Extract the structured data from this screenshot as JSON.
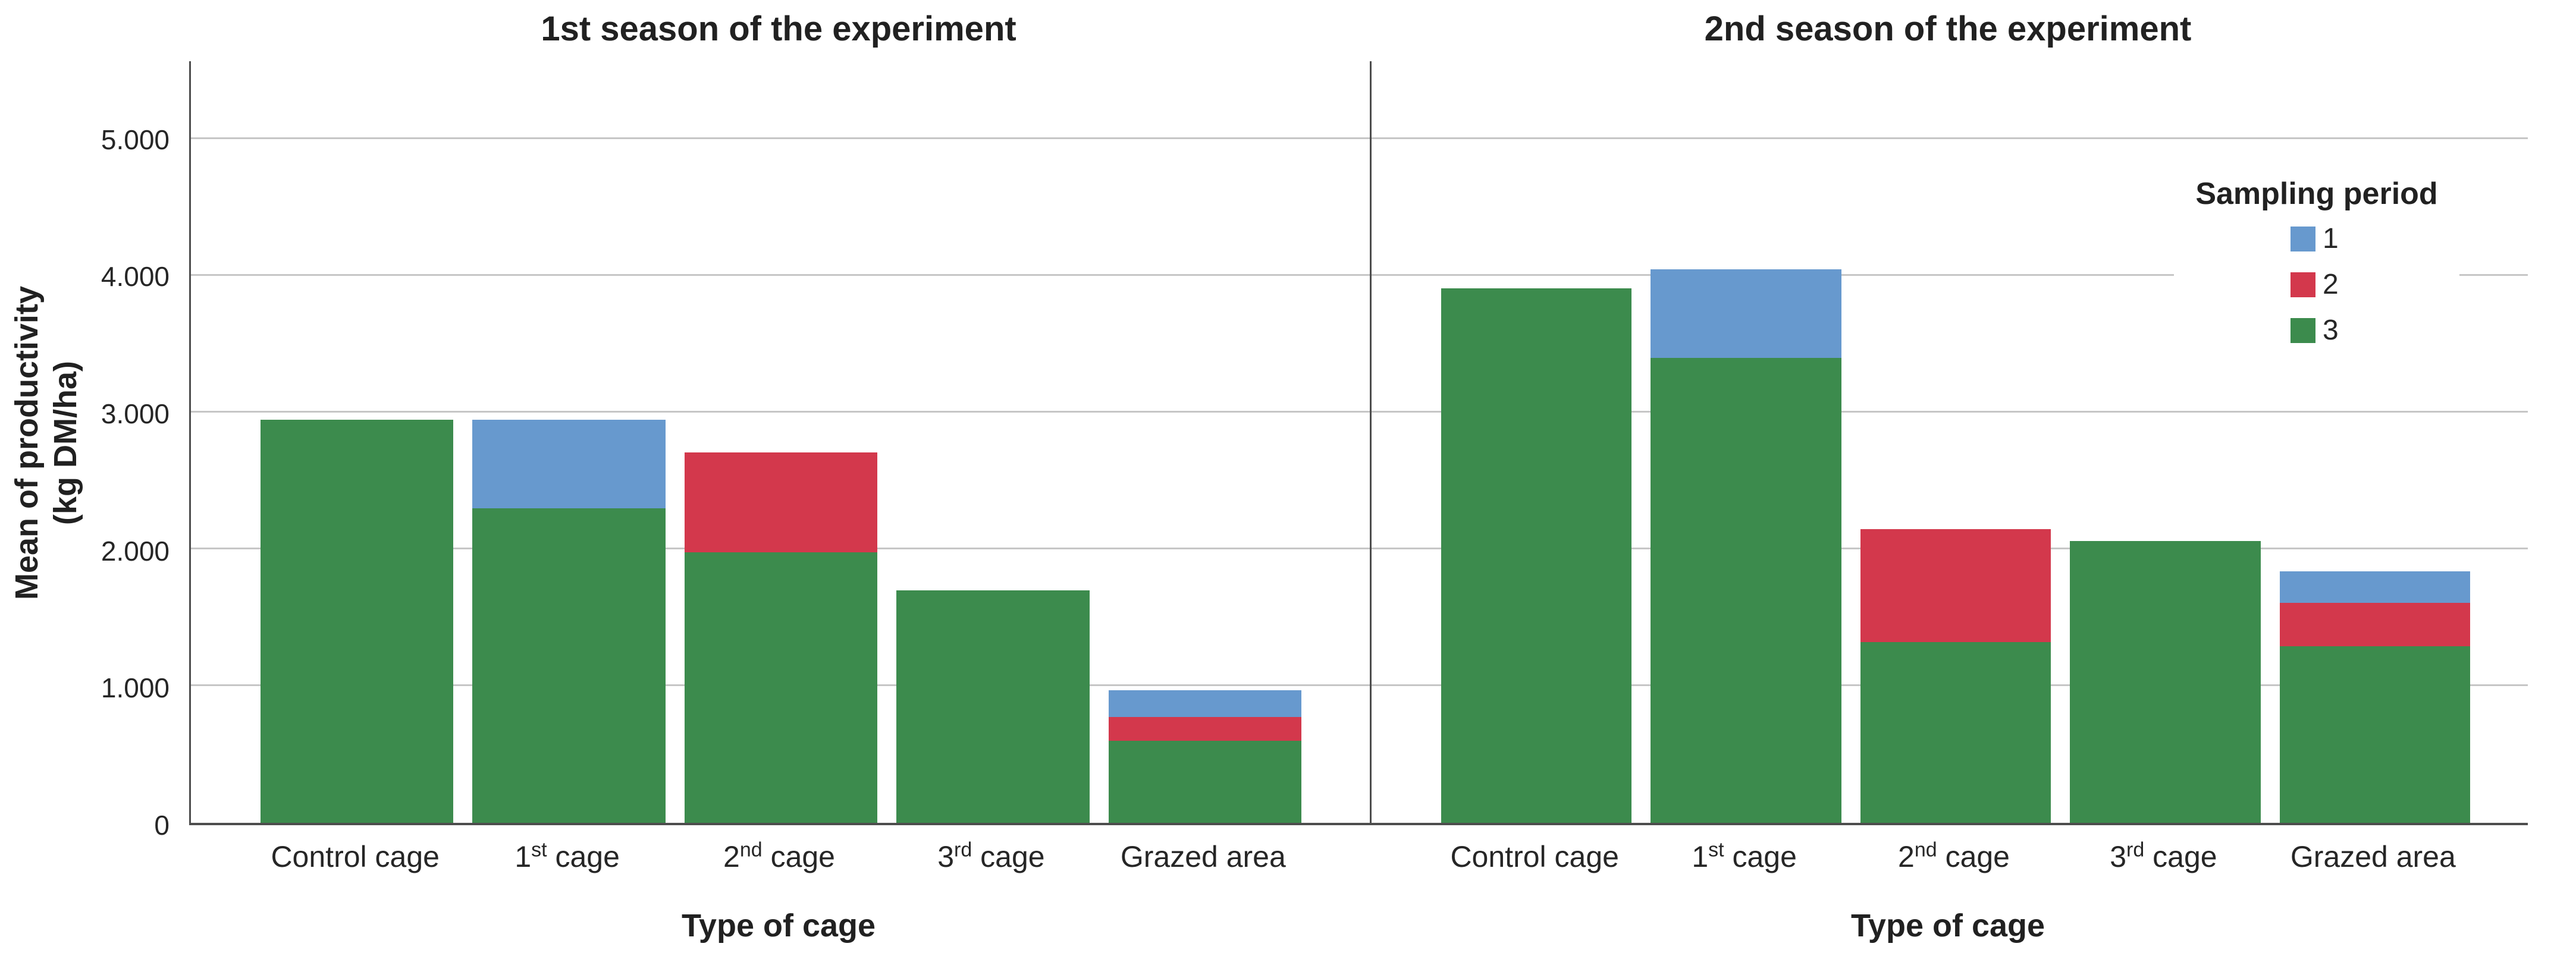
{
  "styles": {
    "grid_color": "#C6C6C6",
    "axis_color": "#4D4D4D",
    "text_color": "#212121"
  },
  "chart_data": {
    "type": "bar",
    "stacked": true,
    "grid": true,
    "ylabel_lines": [
      "Mean of productivity",
      "(kg DM/ha)"
    ],
    "xlabel": "Type of cage",
    "y_axis": {
      "max_value": 5570,
      "ticks": [
        {
          "value": 0,
          "label": "0"
        },
        {
          "value": 1000,
          "label": "1.000"
        },
        {
          "value": 2000,
          "label": "2.000"
        },
        {
          "value": 3000,
          "label": "3.000"
        },
        {
          "value": 4000,
          "label": "4.000"
        },
        {
          "value": 5000,
          "label": "5.000"
        }
      ]
    },
    "legend": {
      "title": "Sampling period",
      "position": "top-right-of-second-panel",
      "items": [
        {
          "label": "1",
          "color": "#6799CE"
        },
        {
          "label": "2",
          "color": "#D3384C"
        },
        {
          "label": "3",
          "color": "#3C8B4D"
        }
      ]
    },
    "colors": {
      "1": "#6799CE",
      "2": "#D3384C",
      "3": "#3C8B4D"
    },
    "stack_order_bottom_to_top": [
      "3",
      "2",
      "1"
    ],
    "categories": [
      {
        "base": "Control cage",
        "sup": "",
        "tail": ""
      },
      {
        "base": "1",
        "sup": "st",
        "tail": " cage"
      },
      {
        "base": "2",
        "sup": "nd",
        "tail": " cage"
      },
      {
        "base": "3",
        "sup": "rd",
        "tail": " cage"
      },
      {
        "base": "Grazed area",
        "sup": "",
        "tail": ""
      }
    ],
    "panels": [
      {
        "title": "1st season of the experiment",
        "series": [
          {
            "name": "1",
            "values": [
              0,
              650,
              0,
              0,
              195
            ]
          },
          {
            "name": "2",
            "values": [
              0,
              0,
              730,
              0,
              175
            ]
          },
          {
            "name": "3",
            "values": [
              2950,
              2300,
              1980,
              1700,
              600
            ]
          }
        ],
        "totals": [
          2950,
          2950,
          2710,
          1700,
          970
        ]
      },
      {
        "title": "2nd season of the experiment",
        "series": [
          {
            "name": "1",
            "values": [
              0,
              650,
              0,
              0,
              230
            ]
          },
          {
            "name": "2",
            "values": [
              0,
              0,
              830,
              0,
              320
            ]
          },
          {
            "name": "3",
            "values": [
              3910,
              3400,
              1320,
              2060,
              1290
            ]
          }
        ],
        "totals": [
          3910,
          4050,
          2150,
          2060,
          1840
        ]
      }
    ]
  }
}
